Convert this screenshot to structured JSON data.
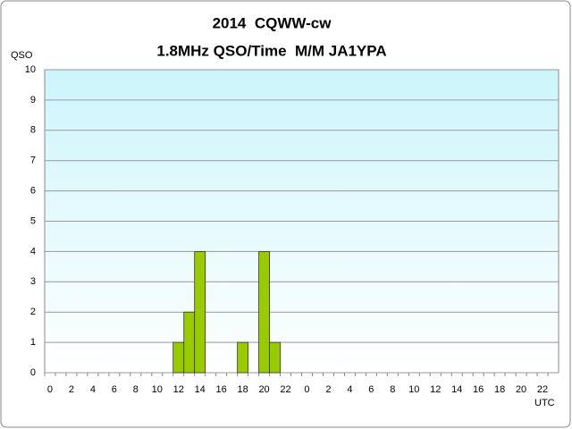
{
  "chart_data": {
    "type": "bar",
    "title": "2014  CQWW-cw",
    "subtitle": "1.8MHz QSO/Time  M/M JA1YPA",
    "y_label": "QSO",
    "x_label": "UTC",
    "categories": [
      "0",
      null,
      "2",
      null,
      "4",
      null,
      "6",
      null,
      "8",
      null,
      "10",
      null,
      "12",
      null,
      "14",
      null,
      "16",
      null,
      "18",
      null,
      "20",
      null,
      "22",
      null,
      "0",
      null,
      "2",
      null,
      "4",
      null,
      "6",
      null,
      "8",
      null,
      "10",
      null,
      "12",
      null,
      "14",
      null,
      "16",
      null,
      "18",
      null,
      "20",
      null,
      "22",
      null
    ],
    "values": [
      0,
      0,
      0,
      0,
      0,
      0,
      0,
      0,
      0,
      0,
      0,
      0,
      1,
      2,
      4,
      0,
      0,
      0,
      1,
      0,
      4,
      1,
      0,
      0,
      0,
      0,
      0,
      0,
      0,
      0,
      0,
      0,
      0,
      0,
      0,
      0,
      0,
      0,
      0,
      0,
      0,
      0,
      0,
      0,
      0,
      0,
      0,
      0
    ],
    "color": "#99cc00",
    "ylim": [
      0,
      10
    ],
    "yticks": [
      0,
      1,
      2,
      3,
      4,
      5,
      6,
      7,
      8,
      9,
      10
    ],
    "grid": true
  }
}
